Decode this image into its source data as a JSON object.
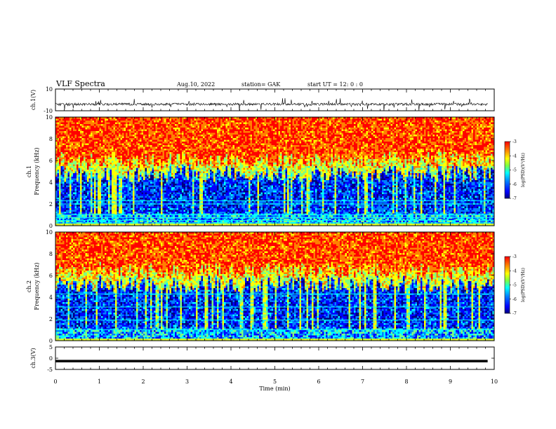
{
  "header": {
    "title": "VLF Spectra",
    "date": "Aug.10, 2022",
    "station": "station= GAK",
    "start": "start  UT =   12: 0  : 0"
  },
  "chart_data": [
    {
      "type": "line",
      "panel": "ch1-waveform",
      "ylabel": "ch.1(V)",
      "ylim": [
        -10,
        10
      ],
      "yticks": [
        "10",
        "-10"
      ],
      "xlim": [
        0,
        10
      ],
      "baseline": -4
    },
    {
      "type": "heatmap",
      "panel": "ch1-spectrogram",
      "ylabel": "ch.1\nFrequency (kHz)",
      "ylim": [
        0,
        10
      ],
      "yticks": [
        "0",
        "2",
        "4",
        "6",
        "8",
        "10"
      ],
      "xlim": [
        0,
        10
      ],
      "colorbar": {
        "label": "log(PSD)(V²/Hz)",
        "range": [
          -7,
          -3
        ],
        "ticks": [
          "-3",
          "-4",
          "-5",
          "-6",
          "-7"
        ]
      },
      "cutoff_kHz": 4.8,
      "lines_kHz": [
        0.25,
        0.5,
        0.75,
        1.0,
        2.0,
        2.3
      ]
    },
    {
      "type": "heatmap",
      "panel": "ch2-spectrogram",
      "ylabel": "ch.2\nFrequency (kHz)",
      "ylim": [
        0,
        10
      ],
      "yticks": [
        "0",
        "2",
        "4",
        "6",
        "8",
        "10"
      ],
      "xlim": [
        0,
        10
      ],
      "colorbar": {
        "label": "log(PSD)(V²/Hz)",
        "range": [
          -7,
          -3
        ],
        "ticks": [
          "-3",
          "-4",
          "-5",
          "-6",
          "-7"
        ]
      },
      "cutoff_kHz": 5.2,
      "lines_kHz": [
        0.15,
        1.0,
        1.9,
        3.1,
        4.3
      ]
    },
    {
      "type": "line",
      "panel": "ch3-waveform",
      "ylabel": "ch.3(V)",
      "ylim": [
        -5,
        5
      ],
      "yticks": [
        "5",
        "0",
        "-5"
      ],
      "xlim": [
        0,
        10
      ],
      "xticks": [
        "0",
        "1",
        "2",
        "3",
        "4",
        "5",
        "6",
        "7",
        "8",
        "9",
        "10"
      ],
      "xlabel": "Time  (min)",
      "level": -1.3
    }
  ],
  "colors": {
    "scale": [
      "#00007f",
      "#0000ff",
      "#0080ff",
      "#00ffff",
      "#80ff80",
      "#ffff00",
      "#ff8000",
      "#ff0000"
    ]
  }
}
